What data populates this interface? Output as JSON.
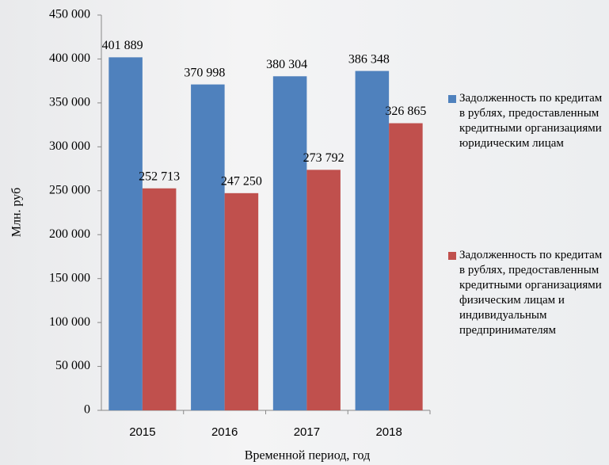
{
  "chart_data": {
    "type": "bar",
    "categories": [
      "2015",
      "2016",
      "2017",
      "2018"
    ],
    "series": [
      {
        "name": "Задолженность по кредитам в рублях, предоставленным кредитными организациями юридическим лицам",
        "color": "#4f81bd",
        "values": [
          401889,
          370998,
          380304,
          386348
        ],
        "value_labels": [
          "401 889",
          "370 998",
          "380 304",
          "386 348"
        ]
      },
      {
        "name": "Задолженность по кредитам в рублях, предоставленным кредитными организациями физическим лицам и индивидуальным предпринимателям",
        "color": "#c0504d",
        "values": [
          252713,
          247250,
          273792,
          326865
        ],
        "value_labels": [
          "252 713",
          "247 250",
          "273 792",
          "326 865"
        ]
      }
    ],
    "ylim": [
      0,
      450000
    ],
    "yticks": [
      0,
      {
        "value": 50000,
        "label": "50 000"
      },
      {
        "value": 100000,
        "label": "100 000"
      },
      {
        "value": 150000,
        "label": "150 000"
      },
      {
        "value": 200000,
        "label": "200 000"
      },
      {
        "value": 250000,
        "label": "250 000"
      },
      {
        "value": 300000,
        "label": "300 000"
      },
      {
        "value": 350000,
        "label": "350 000"
      },
      {
        "value": 400000,
        "label": "400 000"
      },
      {
        "value": 450000,
        "label": "450 000"
      }
    ],
    "grid": false,
    "y_label": "Млн. руб",
    "x_label": "Временной период, год",
    "legend": "right"
  }
}
